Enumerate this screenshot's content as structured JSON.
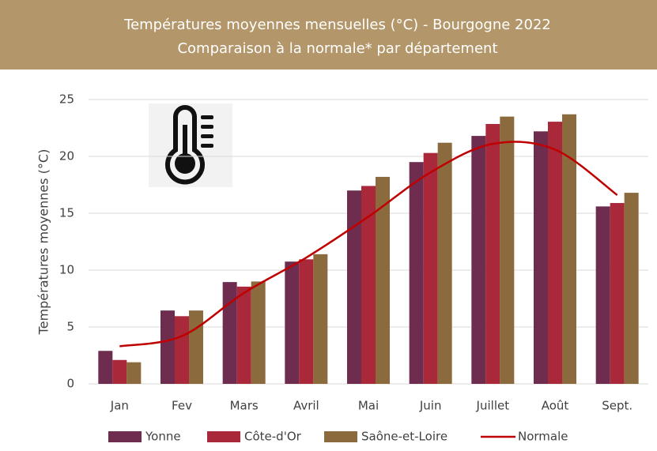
{
  "chart_data": {
    "type": "bar",
    "title": [
      "Températures moyennes mensuelles (°C) - Bourgogne 2022",
      "Comparaison à la normale* par département"
    ],
    "y_label": "Températures moyennes (°C)",
    "categories": [
      "Jan",
      "Fev",
      "Mars",
      "Avril",
      "Mai",
      "Juin",
      "Juillet",
      "Août",
      "Sept."
    ],
    "series": [
      {
        "name": "Yonne",
        "type": "bar",
        "color": "#6e2d4f",
        "values": [
          2.9,
          6.45,
          8.95,
          10.75,
          17.0,
          19.5,
          21.8,
          22.2,
          15.6
        ]
      },
      {
        "name": "Côte-d'Or",
        "type": "bar",
        "color": "#a9283a",
        "values": [
          2.1,
          5.95,
          8.55,
          10.95,
          17.4,
          20.3,
          22.85,
          23.05,
          15.9
        ]
      },
      {
        "name": "Saône-et-Loire",
        "type": "bar",
        "color": "#8b6b3d",
        "values": [
          1.9,
          6.45,
          9.0,
          11.4,
          18.2,
          21.2,
          23.5,
          23.7,
          16.8
        ]
      },
      {
        "name": "Normale",
        "type": "line",
        "color": "#c00000",
        "values": [
          3.3,
          4.2,
          8.0,
          11.1,
          14.7,
          18.6,
          21.1,
          20.6,
          16.6
        ]
      }
    ],
    "ylim": [
      0,
      25
    ],
    "yticks": [
      0,
      5,
      10,
      15,
      20,
      25
    ],
    "grid": true,
    "legend": "bottom"
  }
}
